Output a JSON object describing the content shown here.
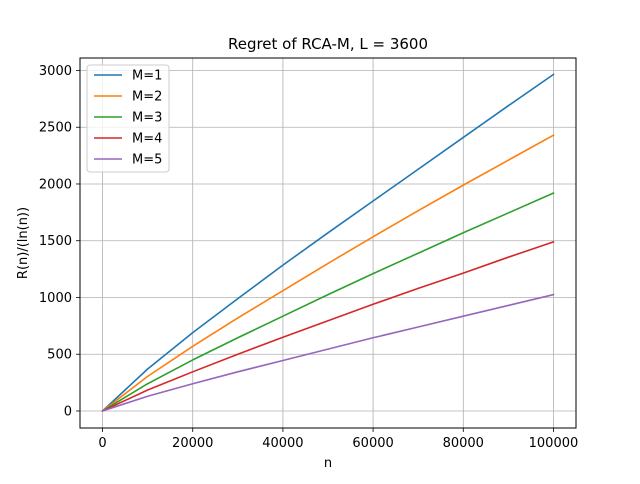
{
  "chart_data": {
    "type": "line",
    "title": "Regret of RCA-M, L = 3600",
    "xlabel": "n",
    "ylabel": "R(n)/(ln(n))",
    "xlim": [
      -5000,
      105000
    ],
    "ylim": [
      -150,
      3110
    ],
    "xticks": [
      0,
      20000,
      40000,
      60000,
      80000,
      100000
    ],
    "yticks": [
      0,
      500,
      1000,
      1500,
      2000,
      2500,
      3000
    ],
    "grid": true,
    "legend_position": "top-left",
    "x": [
      0,
      10000,
      20000,
      30000,
      40000,
      50000,
      60000,
      70000,
      80000,
      90000,
      100000
    ],
    "series": [
      {
        "name": "M=1",
        "color": "#1f77b4",
        "values": [
          0,
          370,
          690,
          990,
          1285,
          1570,
          1850,
          2130,
          2410,
          2690,
          2965
        ]
      },
      {
        "name": "M=2",
        "color": "#ff7f0e",
        "values": [
          0,
          305,
          570,
          820,
          1060,
          1300,
          1535,
          1765,
          1990,
          2210,
          2430
        ]
      },
      {
        "name": "M=3",
        "color": "#2ca02c",
        "values": [
          0,
          240,
          450,
          645,
          835,
          1025,
          1210,
          1390,
          1570,
          1745,
          1920
        ]
      },
      {
        "name": "M=4",
        "color": "#d62728",
        "values": [
          0,
          185,
          345,
          500,
          650,
          795,
          940,
          1080,
          1215,
          1355,
          1490
        ]
      },
      {
        "name": "M=5",
        "color": "#9467bd",
        "values": [
          0,
          130,
          240,
          345,
          445,
          545,
          645,
          740,
          835,
          930,
          1025
        ]
      }
    ]
  }
}
